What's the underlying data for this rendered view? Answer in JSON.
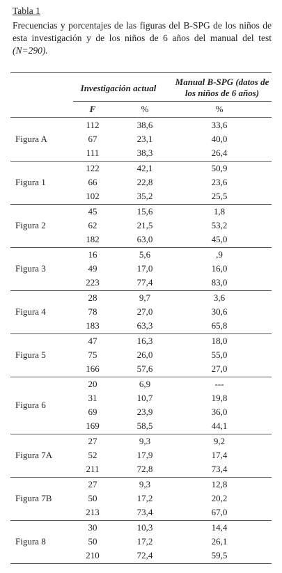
{
  "header": {
    "label": "Tabla 1",
    "caption": "Frecuencias y porcentajes de las figuras del B-SPG de los niños de esta investigación y de los niños de 6 años del manual del test",
    "caption_italic": "(N=290)."
  },
  "table": {
    "columns": {
      "group1": "Investigación actual",
      "group2": "Manual B-SPG (datos de los niños de 6 años)",
      "f": "F",
      "pct1": "%",
      "pct2": "%"
    },
    "groups": [
      {
        "label": "Figura A",
        "rows": [
          [
            "112",
            "38,6",
            "33,6"
          ],
          [
            "67",
            "23,1",
            "40,0"
          ],
          [
            "111",
            "38,3",
            "26,4"
          ]
        ]
      },
      {
        "label": "Figura 1",
        "rows": [
          [
            "122",
            "42,1",
            "50,9"
          ],
          [
            "66",
            "22,8",
            "23,6"
          ],
          [
            "102",
            "35,2",
            "25,5"
          ]
        ]
      },
      {
        "label": "Figura 2",
        "rows": [
          [
            "45",
            "15,6",
            "1,8"
          ],
          [
            "62",
            "21,5",
            "53,2"
          ],
          [
            "182",
            "63,0",
            "45,0"
          ]
        ]
      },
      {
        "label": "Figura 3",
        "rows": [
          [
            "16",
            "5,6",
            ",9"
          ],
          [
            "49",
            "17,0",
            "16,0"
          ],
          [
            "223",
            "77,4",
            "83,0"
          ]
        ]
      },
      {
        "label": "Figura 4",
        "rows": [
          [
            "28",
            "9,7",
            "3,6"
          ],
          [
            "78",
            "27,0",
            "30,6"
          ],
          [
            "183",
            "63,3",
            "65,8"
          ]
        ]
      },
      {
        "label": "Figura 5",
        "rows": [
          [
            "47",
            "16,3",
            "18,0"
          ],
          [
            "75",
            "26,0",
            "55,0"
          ],
          [
            "166",
            "57,6",
            "27,0"
          ]
        ]
      },
      {
        "label": "Figura 6",
        "rows": [
          [
            "20",
            "6,9",
            "---"
          ],
          [
            "31",
            "10,7",
            "19,8"
          ],
          [
            "69",
            "23,9",
            "36,0"
          ],
          [
            "169",
            "58,5",
            "44,1"
          ]
        ]
      },
      {
        "label": "Figura 7A",
        "rows": [
          [
            "27",
            "9,3",
            "9,2"
          ],
          [
            "52",
            "17,9",
            "17,4"
          ],
          [
            "211",
            "72,8",
            "73,4"
          ]
        ]
      },
      {
        "label": "Figura 7B",
        "rows": [
          [
            "27",
            "9,3",
            "12,8"
          ],
          [
            "50",
            "17,2",
            "20,2"
          ],
          [
            "213",
            "73,4",
            "67,0"
          ]
        ]
      },
      {
        "label": "Figura 8",
        "rows": [
          [
            "30",
            "10,3",
            "14,4"
          ],
          [
            "50",
            "17,2",
            "26,1"
          ],
          [
            "210",
            "72,4",
            "59,5"
          ]
        ]
      }
    ]
  }
}
